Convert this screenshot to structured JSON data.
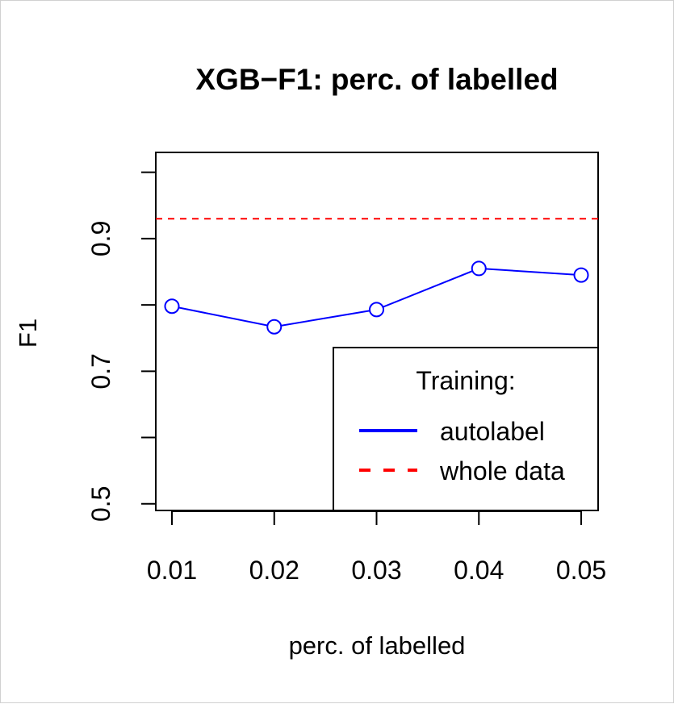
{
  "chart_data": {
    "type": "line",
    "title": "XGB−F1: perc. of labelled",
    "xlabel": "perc. of labelled",
    "ylabel": "F1",
    "x": [
      0.01,
      0.02,
      0.03,
      0.04,
      0.05
    ],
    "x_tick_labels": [
      "0.01",
      "0.02",
      "0.03",
      "0.04",
      "0.05"
    ],
    "y_tick_labels": [
      "0.5",
      "0.7",
      "0.9"
    ],
    "y_ticks": [
      0.5,
      0.6,
      0.7,
      0.8,
      0.9,
      1.0
    ],
    "ylim": [
      0.49,
      1.03
    ],
    "series": [
      {
        "name": "autolabel",
        "values": [
          0.798,
          0.767,
          0.793,
          0.855,
          0.845
        ],
        "color": "#0000ff",
        "style": "solid",
        "markers": "open-circle"
      }
    ],
    "reference_lines": [
      {
        "name": "whole data",
        "value": 0.93,
        "color": "#ff0000",
        "style": "dashed"
      }
    ],
    "legend": {
      "title": "Training:",
      "position": "bottom-right",
      "entries": [
        "autolabel",
        "whole data"
      ]
    },
    "grid": false
  }
}
